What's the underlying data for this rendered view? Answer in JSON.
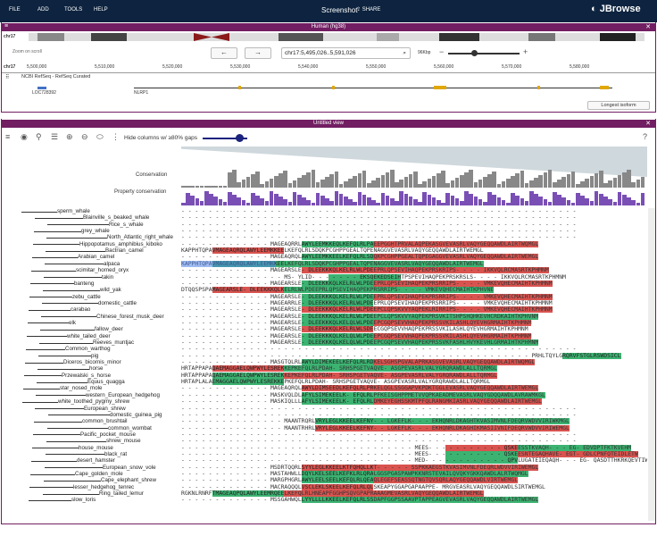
{
  "menus": [
    "FILE",
    "ADD",
    "TOOLS",
    "HELP"
  ],
  "app_title": "Screenshot",
  "share_label": "SHARE",
  "brand": "JBrowse",
  "lgv": {
    "title": "Human (hg38)",
    "chrom": "chr17",
    "zoom_hint": "Zoom on scroll",
    "locus": "chr17:5,495,026..5,591,026",
    "size": "96Kbp",
    "ruler_chrom": "chr17",
    "ruler": [
      "5,500,000",
      "5,510,000",
      "5,520,000",
      "5,530,000",
      "5,540,000",
      "5,550,000",
      "5,560,000",
      "5,570,000",
      "5,580,000"
    ],
    "track": "NCBI RefSeq - RefSeq Curated",
    "gene1": "LOC728392",
    "gene2": "NLRP1",
    "longest": "Longest isoform"
  },
  "msa": {
    "title": "Untitled view",
    "hide_cols": "Hide columns w/ ≥80% gaps",
    "conservation": "Conservation",
    "property": "Property conservation",
    "species": [
      "sperm_whale",
      "Blainville_s_beaked_whale",
      "Rice_s_whale",
      "grey_whale",
      "North_Atlantic_right_whale",
      "Hippopotamus_amphibius_kiboko",
      "Bactrian_camel",
      "Arabian_camel",
      "alpaca",
      "scimitar_horned_oryx",
      "takin",
      "banteng",
      "wild_yak",
      "zebu_cattle",
      "domestic_cattle",
      "carabao",
      "Chinese_forest_musk_deer",
      "elk",
      "fallow_deer",
      "white_tailed_deer",
      "Reeves_muntjac",
      "Common_warthog",
      "pig",
      "Diceros_bicornis_minor",
      "horse",
      "Przewalski_s_horse",
      "Equus_quagga",
      "star_nosed_mole",
      "western_European_hedgehog",
      "white_toothed_pygmy_shrew",
      "European_shrew",
      "domestic_guinea_pig",
      "common_brushtail",
      "common_wombat",
      "Pacific_pocket_mouse",
      "shrew_mouse",
      "house_mouse",
      "black_rat",
      "desert_hamster",
      "European_snow_vole",
      "Cape_golden_mole",
      "Cape_elephant_shrew",
      "lesser_hedgehog_tenrec",
      "Ring_tailed_lemur",
      "slow_loris"
    ],
    "seqs": [
      "- - - - - - - - - - - - - - - - - - - - - - - - - - - - - - - - - - - - - - - - - - - - - - - - - - - - - - - - - -",
      "- - - - - - - - - - - - - - - - - - - - - - - - - - - - - - - - - - - - - - - - - - - - - - - - - - - - - - - - - -",
      "- - - - - - - - - - - - - - - - - - - - - - - - - - - - - - - - - - - - - - - - - - - - - - - - - - - - - - - - - -",
      "- - - - - - - - - - - - - - - - - - - - - - - - - - - - - - - - - - - - - - - - - - - - - - - - - - - - - - - - - -",
      "- - - - - - - - - - - - - - - - - - - - - - - - - - - - - - - - - - - - - - - - - - - - - - - - - - - - - - - - - -",
      "- - - - - - - - - - - - - MAGEAQRRLAWYLEEMKKEQLKEFQLRLPAEEPGGHTPRVALAQPEKASGVEVASRLVAQYGEQQAWDLAIRTWQMGL",
      "KAPPHTQPAVMAGEAQRQLAWYLEEMKKEELKEFQLRLSDQKPCGHPPGEALTQPENAGGVEVASRLVAQYGEQQAWDLAIRTWEMGL",
      "- - - - - - - - - - - - - MAGEAQRQLAWYLEEMKKEELKEFQLRLSDQKPCGHPPGEALTQPEGAGGVEVASRLVAQYGEQQAWDLAIRTWEMGL",
      "KAPPHTQPAVMAGEAQRQLAWYLEEMKKEELKEFQLRLSDQKPCGHPPGEALTQPENAGGVEVASRLVAQYGEQQAWDLAIRTWEMGL",
      "- - - - - - - - - - - - - MAGEARSLE- DLEEKKKQLKELRLWLPDEEPRLQPSEVIHAQPEKPRSKRIPS- - - - IKKVQLRCMASRTKPHMNM",
      "- - - - - - - - - - - - - - - MS- YLID- - - - - - - EKSQEKEDSEIHTPSPEVIHAQPEKPRSKRSLS- - - - IKKVQLRCMASRTKPHMNM",
      "- - - - - - - - - - - - - MAGEARSLE- DLEEKKKQLKELRLWLPDEEPRLQPSEVIHAQPEKPRSRRIPS- - - - VMKEVQHECMAIHTKPHMNM",
      "DTQQSPSPAMAGEARSLE- DLEEKKKQLKELRLWLPDEEPRLQPSEVIHAQPEKPRSRRIPS- - - - VMKEVQHECMAIHTKPHVNE",
      "- - - - - - - - - - - - - MAGEARSLE- DLEEKKKQLKELRLWLPDEEPRLQPSEVIHAQPEKPRSRRIPS- - - - VMKEVQHECMAIHTKPHMNM",
      "- - - - - - - - - - - - - MAGEARRLE- DLEEKKKQLKELRLWLPDEEPRLQPSEVIHAQPEKPRSRRIPS- - - - VMKEVQHECMAIHTKPHMNM",
      "- - - - - - - - - - - - - MAGEARSLE- DLEEKKKQLKELRLWLPDEEPCLQPSKVVYAQPEKLRIRRIPS- - - - VMKEVQHECMAIHTKPHMNM",
      "- - - - - - - - - - - - - MAGEARSLE- DLEEKKKQLKELRLWLPDEEPCLQPSKVVYAQPEKPRSVKITSHPSHQHKEVHCRDKAIHTKPHVNM",
      "- - - - - - - - - - - - - MAGEARSLE- DLEEKKKQLKELQLWLPDEEPCGQPSEVVHAQPEKPRSSVKILASHLQYEVHGRMAIHTKPHMNM",
      "- - - - - - - - - - - - - MAGEARSLE- DLEEKKKQLKELRLWLSDEECGQPSEVVHAQPEKPRSSVKILASHLQYEVHGRMAIHTKPHMNM",
      "- - - - - - - - - - - - - MAGEARSLE- DLEEKKKQLKELQLWLPDEEPCGQPSEVVHAQPEKPRSSVKILASHLQYEVHGRMAIHTKPHMNM",
      "- - - - - - - - - - - - - MAGEARSLE- DLEEKKKQLKELQLWLPDEEPCGQPSEVVHAQPEKPRSSVKFASHLHVYKEVHLGRMAIHTKPHMNM",
      "- - - - - - - - - - - - - - - - - - - - - - - - - - - - - - - - - - - - - - - - - - - - - - - - - - - - - - - - - -",
      "- - - - - - - - - - - - - - - - - - - - - - - - - - - - - - - - - - - - - - - - - - - - - - - - - - - PRHLTQYLGRQRVFSTGLRSWDSICL",
      "- - - - - - - - - - - - - MASGTQLRLAWYLDIMEKEELKEFQLRLRDKELSGHSPGVALAPRKASGVEVASRLVAQYGEQQAWDLAIRTWQMGL",
      "HRTAPPAPAQAEMAGGAELQWPWYLESREKKEPKEFQLRLPDAH- SRHSPGETVAQVE- ASGPEVASRLVALYGRQRAWDLALLTQRMGL",
      "HRTAPPAPAQAEMAGGAELQWPWYLESREKKEPKEFQLRLPDAH- SRHSPGETVAQVE- ASGPEVASRLVALYGRQRAWDLALLTQRMGL",
      "HRTAPLALAEMAGGAELQWPWYLESREKKEPKEFQLRLPDAH- SRHSPGETVAQVE- ASGPEVASRLVALYGRQRAWDLALLTQRMGL",
      "- - - - - - - - - - - - - MAGEAQRQLAWYLDIMSEEDLKEFQLRLPRKELQGLSSGGAPVKPDKTGGLEVASRLVAQYGEQQAWDLAIRTWEMGL",
      "- - - - - - - - - - - - - MASKVQLDLAFYLSIMEKEELK- EFQLRLPFKEISGHPPMETVVQPKAEADMEVASRLVAQYGDQQAWDLAVRAWMKGL",
      "- - - - - - - - - - - - - MASKIQLLLAFYLSIMEKEELK- EFQLRLDMKEYEGHSSKMTPFQLRANGMKIASRLVAQYGEQQAWDLAIRTWEMGL",
      "- - - - - - - - - - - - - - - - - - - - - - - - - - - - - - - - - - - - - - - - - - - - - - - - - - - - - - - - - -",
      "- - - - - - - - - - - - - - - - - - - - - - - - - - - - - - - - - - - - - - - - - - - - - - - - - - - - - - - - - -",
      "- - - - - - - - - - - - - - - MAANTRQRLVRYLEGLKKEELKEFNY- - LGKEFLK- - - EKHQNRLDKAGHTKVASIMVNLFDEQRVWDVVIRIWKMGL",
      "- - - - - - - - - - - - - - - MAANTRHRLVRYLEGLKKEELKEFNY- - LGKEFLK- - - EKHQNRLDKAGHIKMASIIVNIFDEQRVWDVVIRIWEMGL",
      "- - - - - - - - - - - - - - - - - - - - - - - - - - - - - - - - - - - - - - - - - - - - - - - - - - - - - - - - - -",
      "- - - - - - - - - - - - - - - - - - - - - - - - - - - - - - - - - - - - - - - - - - - - - - - - - - - - - - - - - -",
      "- - - - - - - - - - - - - - - - - - - - - - - - - - - - - - - - - - MEES- - - - - - - - - - - QSKEESSTKVAQH- - - EG- EDVDPTFKTKVEHM",
      "- - - - - - - - - - - - - - - - - - - - - - - - - - - - - - - - - - MEES- - - - - - - - - - - QSKEESNTEGAQHAVE- EGT- GDLCPNFQTEIDLETW",
      "- - - - - - - - - - - - - - - - - - - - - - - - - - - - - - - - - - MED- - - - - - - - - - - - QPVLUGATEIEQAQH- - - EG- QASDTTHKRKQEVTIWHA",
      "- - - - - - - - - - - - - MSDRTQQRLSYYLEGLKKEELKTFQHQLLKT- - - - - SSPKKAEGSTKVASIMVNLFDEQRLWDVVIRIWEMGL",
      "- - - - - - - - - - - - - MASTAHWLLDQYLKELSEELKEFKLRLQRALGGSPGASPAWPKKNRSTEVAILQVQKYGKKQAWDLALRTWQMGL",
      "- - - - - - - - - - - - - MARGPHGRLAWYLEELSEELKEFQLRLQEAQLEGEFSEASSQTNGTQVSQRLAQYGEQQAWDLVIRTWEMGL",
      "- - - - - - - - - - - - - MACRAQQQLVSCLEKLSKEELKEFQLRLQLSKEAPYGGAPGAPAAPPE- MRGVEASRLVAQYGEQQAWDLSIRTWEMGL",
      "RGKNLRNRFTMAGEAQPQLAWYLEEMRQEELKEFQLRLHNEAPFGGHPSQVGPAPRAAAGMEVASRLVAQYGEQQAWDLAIRTWEMGL",
      "- - - - - - - - - - - - - MSSGAHWQLLYYLLLLKKEELKEFQLRLSSDAPFGGPSSAAVPTAPPEAGVEVASRLVAQYGEQQAWDLAIRTWEMGL"
    ]
  }
}
